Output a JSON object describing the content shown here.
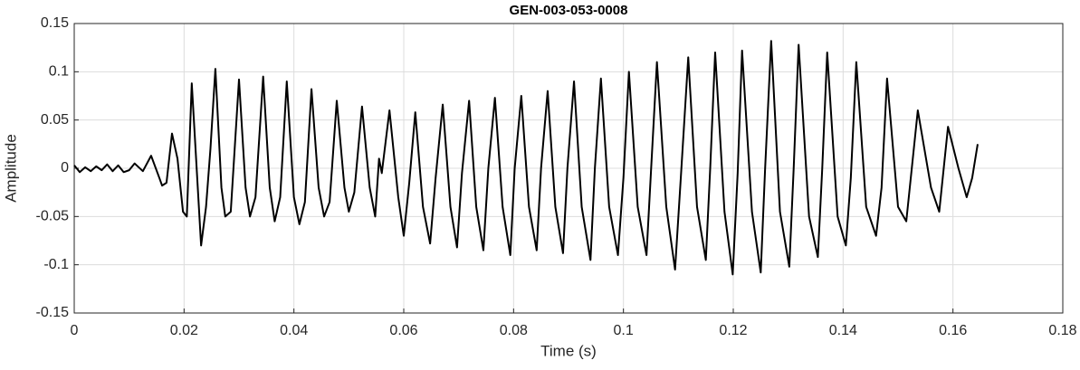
{
  "chart_data": {
    "type": "line",
    "title": "GEN-003-053-0008",
    "xlabel": "Time (s)",
    "ylabel": "Amplitude",
    "xlim": [
      0,
      0.18
    ],
    "xticks": [
      0,
      0.02,
      0.04,
      0.06,
      0.08,
      0.1,
      0.12,
      0.14,
      0.16,
      0.18
    ],
    "ylim": [
      -0.15,
      0.15
    ],
    "yticks": [
      -0.15,
      -0.1,
      -0.05,
      0,
      0.05,
      0.1,
      0.15
    ],
    "grid": true,
    "color": "#000000",
    "x": [
      0,
      0.001,
      0.002,
      0.003,
      0.004,
      0.005,
      0.006,
      0.007,
      0.008,
      0.009,
      0.01,
      0.011,
      0.0125,
      0.014,
      0.0155,
      0.016,
      0.0168,
      0.0178,
      0.0188,
      0.0198,
      0.0205,
      0.0214,
      0.0231,
      0.024,
      0.0248,
      0.0257,
      0.0268,
      0.0275,
      0.0285,
      0.03,
      0.0312,
      0.032,
      0.033,
      0.0344,
      0.0356,
      0.0365,
      0.0375,
      0.0387,
      0.04,
      0.041,
      0.042,
      0.0432,
      0.0445,
      0.0455,
      0.0465,
      0.0478,
      0.0492,
      0.05,
      0.051,
      0.0524,
      0.0538,
      0.0548,
      0.0555,
      0.056,
      0.0574,
      0.059,
      0.06,
      0.061,
      0.0621,
      0.0635,
      0.0648,
      0.0658,
      0.0671,
      0.0685,
      0.0697,
      0.0706,
      0.0719,
      0.0732,
      0.0745,
      0.0754,
      0.0766,
      0.078,
      0.0794,
      0.0802,
      0.0814,
      0.0828,
      0.0842,
      0.085,
      0.0862,
      0.0876,
      0.089,
      0.0898,
      0.091,
      0.0924,
      0.094,
      0.0948,
      0.0959,
      0.0974,
      0.099,
      0.1,
      0.101,
      0.1026,
      0.1042,
      0.105,
      0.1061,
      0.1078,
      0.1094,
      0.1105,
      0.1118,
      0.1134,
      0.115,
      0.1158,
      0.1167,
      0.1184,
      0.1199,
      0.1208,
      0.1216,
      0.1234,
      0.125,
      0.1258,
      0.1269,
      0.1285,
      0.1302,
      0.131,
      0.1319,
      0.1338,
      0.1354,
      0.1362,
      0.1371,
      0.139,
      0.1405,
      0.1414,
      0.1424,
      0.1442,
      0.146,
      0.147,
      0.148,
      0.15,
      0.1515,
      0.1536,
      0.156,
      0.1575,
      0.1591,
      0.161,
      0.1625,
      0.1635,
      0.1645
    ],
    "values": [
      0.003,
      -0.004,
      0.001,
      -0.003,
      0.002,
      -0.002,
      0.004,
      -0.003,
      0.003,
      -0.004,
      -0.002,
      0.005,
      -0.003,
      0.013,
      -0.01,
      -0.018,
      -0.015,
      0.036,
      0.01,
      -0.045,
      -0.05,
      0.088,
      -0.08,
      -0.04,
      0.02,
      0.103,
      -0.02,
      -0.05,
      -0.045,
      0.092,
      -0.02,
      -0.05,
      -0.03,
      0.095,
      -0.02,
      -0.055,
      -0.03,
      0.09,
      -0.03,
      -0.058,
      -0.035,
      0.082,
      -0.02,
      -0.05,
      -0.035,
      0.07,
      -0.02,
      -0.045,
      -0.025,
      0.064,
      -0.02,
      -0.05,
      0.01,
      -0.005,
      0.06,
      -0.03,
      -0.07,
      -0.015,
      0.058,
      -0.04,
      -0.078,
      -0.01,
      0.066,
      -0.04,
      -0.082,
      -0.005,
      0.07,
      -0.04,
      -0.085,
      0,
      0.073,
      -0.04,
      -0.09,
      0,
      0.075,
      -0.04,
      -0.085,
      0,
      0.08,
      -0.04,
      -0.088,
      0,
      0.09,
      -0.04,
      -0.095,
      0,
      0.093,
      -0.04,
      -0.09,
      -0.01,
      0.1,
      -0.04,
      -0.09,
      -0.005,
      0.11,
      -0.04,
      -0.105,
      -0.005,
      0.115,
      -0.04,
      -0.095,
      0,
      0.12,
      -0.045,
      -0.11,
      -0.005,
      0.122,
      -0.045,
      -0.108,
      0,
      0.132,
      -0.045,
      -0.102,
      0,
      0.128,
      -0.05,
      -0.092,
      0,
      0.12,
      -0.05,
      -0.08,
      -0.01,
      0.11,
      -0.04,
      -0.07,
      -0.02,
      0.093,
      -0.04,
      -0.055,
      0.06,
      -0.02,
      -0.045,
      0.043,
      0,
      -0.03,
      -0.01,
      0.025
    ]
  }
}
